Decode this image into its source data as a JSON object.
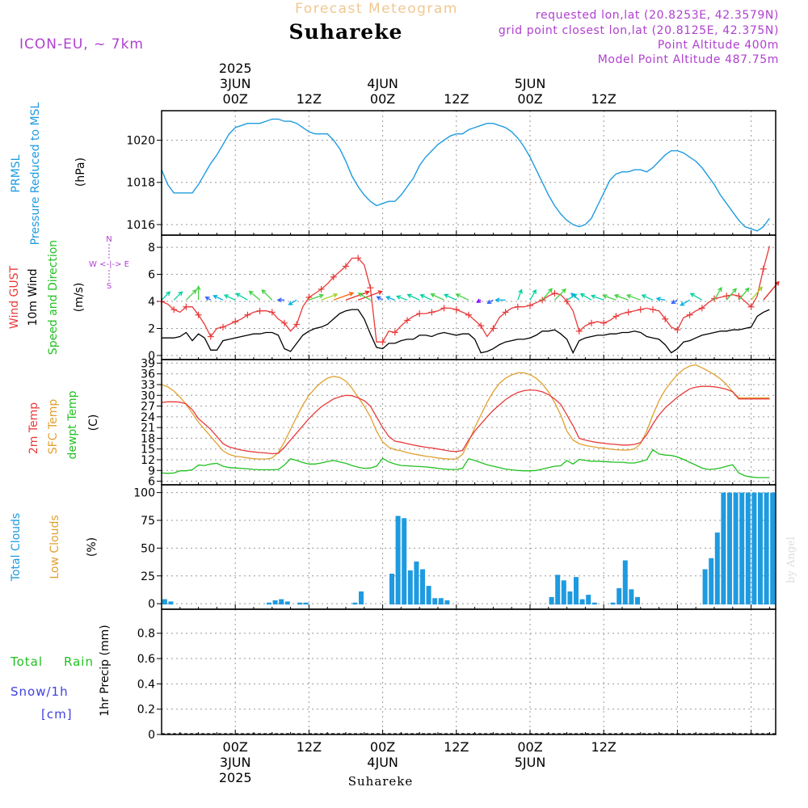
{
  "header": {
    "forecast_title": "Forecast Meteogram",
    "location": "Suhareke",
    "model": "ICON-EU, ~ 7km",
    "requested": "requested lon,lat (20.8253E, 42.3579N)",
    "gridpoint": "grid point closest lon,lat (20.8125E, 42.375N)",
    "point_alt": "Point Altitude 400m",
    "model_alt": "Model Point Altitude 487.75m",
    "footer_location": "Suhareke",
    "watermark": "by Angel"
  },
  "time_axis": {
    "top_labels": [
      {
        "t": 12,
        "lines": [
          "2025",
          "3JUN",
          "00Z"
        ]
      },
      {
        "t": 24,
        "lines": [
          "12Z"
        ]
      },
      {
        "t": 36,
        "lines": [
          "4JUN",
          "00Z"
        ]
      },
      {
        "t": 48,
        "lines": [
          "12Z"
        ]
      },
      {
        "t": 60,
        "lines": [
          "5JUN",
          "00Z"
        ]
      },
      {
        "t": 72,
        "lines": [
          "12Z"
        ]
      }
    ],
    "bottom_labels": [
      {
        "t": 12,
        "lines": [
          "00Z",
          "3JUN",
          "2025"
        ]
      },
      {
        "t": 24,
        "lines": [
          "12Z"
        ]
      },
      {
        "t": 36,
        "lines": [
          "00Z",
          "4JUN"
        ]
      },
      {
        "t": 48,
        "lines": [
          "12Z"
        ]
      },
      {
        "t": 60,
        "lines": [
          "00Z",
          "5JUN"
        ]
      },
      {
        "t": 72,
        "lines": [
          "12Z"
        ]
      }
    ]
  },
  "colors": {
    "pressure": "#1e9be0",
    "gust": "#e83a3a",
    "wind10m": "#000000",
    "temp2m": "#e83a3a",
    "sfctemp": "#e0a030",
    "dewpt": "#22c022",
    "clouds": "#1e9be0",
    "low_clouds": "#e0a030",
    "rain": "#22c022",
    "snow": "#4040e0",
    "purple": "#b040d0",
    "grid": "#999999"
  },
  "panel_labels": {
    "pressure": {
      "l1": "PRMSL",
      "l2": "Pressure Reduced to MSL",
      "unit": "(hPa)"
    },
    "wind": {
      "l1": "Wind GUST",
      "l2": "10m Wind",
      "l3": "Speed and Direction",
      "unit": "(m/s)",
      "compass_n": "N",
      "compass_we": "W <-|-> E",
      "compass_s": "S"
    },
    "temp": {
      "l1": "2m Temp",
      "l2": "SFC Temp",
      "l3": "dewpt Temp",
      "unit": "(C)"
    },
    "clouds": {
      "l1": "Total Clouds",
      "l2": "Low Clouds",
      "unit": "(%)"
    },
    "precip": {
      "l1": "Total",
      "l1b": "Rain",
      "l2": "Snow/1h",
      "l3": "[cm]",
      "ylabel": "1hr Precip (mm)"
    }
  },
  "chart_data": [
    {
      "type": "line",
      "panel": "pressure",
      "title": "PRMSL Pressure Reduced to MSL",
      "ylabel": "(hPa)",
      "ylim": [
        1015.5,
        1021.4
      ],
      "yticks": [
        1016,
        1018,
        1020
      ],
      "x_start_hours": 0,
      "x_step_hours": 1,
      "series": [
        {
          "name": "PRMSL",
          "values": [
            1018.6,
            1017.9,
            1017.5,
            1017.5,
            1017.5,
            1017.5,
            1017.9,
            1018.4,
            1018.9,
            1019.3,
            1019.8,
            1020.3,
            1020.6,
            1020.7,
            1020.8,
            1020.8,
            1020.8,
            1020.9,
            1021.0,
            1021.0,
            1020.9,
            1020.9,
            1020.8,
            1020.6,
            1020.4,
            1020.3,
            1020.3,
            1020.3,
            1020.0,
            1019.6,
            1019.0,
            1018.3,
            1017.8,
            1017.4,
            1017.1,
            1016.9,
            1017.0,
            1017.1,
            1017.1,
            1017.4,
            1017.8,
            1018.2,
            1018.8,
            1019.2,
            1019.5,
            1019.8,
            1020.0,
            1020.2,
            1020.3,
            1020.3,
            1020.5,
            1020.6,
            1020.7,
            1020.8,
            1020.8,
            1020.7,
            1020.6,
            1020.4,
            1020.1,
            1019.7,
            1019.2,
            1018.6,
            1018.0,
            1017.4,
            1016.9,
            1016.5,
            1016.2,
            1016.0,
            1015.9,
            1016.0,
            1016.3,
            1016.9,
            1017.5,
            1018.1,
            1018.4,
            1018.5,
            1018.5,
            1018.6,
            1018.6,
            1018.5,
            1018.7,
            1019.0,
            1019.3,
            1019.5,
            1019.5,
            1019.4,
            1019.2,
            1019.0,
            1018.7,
            1018.3,
            1017.9,
            1017.4,
            1017.0,
            1016.6,
            1016.2,
            1015.9,
            1015.8,
            1015.7,
            1015.9,
            1016.3
          ]
        }
      ]
    },
    {
      "type": "line",
      "panel": "wind",
      "title": "Wind GUST / 10m Wind Speed and Direction",
      "ylabel": "(m/s)",
      "ylim": [
        -0.3,
        8.9
      ],
      "yticks": [
        0,
        2,
        4,
        6,
        8
      ],
      "x_start_hours": 0,
      "x_step_hours": 1,
      "series": [
        {
          "name": "Wind GUST",
          "values": [
            4.0,
            3.8,
            3.4,
            3.2,
            3.6,
            3.6,
            3.0,
            2.3,
            1.4,
            2.0,
            2.1,
            2.3,
            2.5,
            2.7,
            3.0,
            3.2,
            3.3,
            3.3,
            3.2,
            2.7,
            2.4,
            1.8,
            2.3,
            3.6,
            4.3,
            4.6,
            4.9,
            5.3,
            5.8,
            6.2,
            6.6,
            7.2,
            7.2,
            6.7,
            5.0,
            1.0,
            1.0,
            1.8,
            1.7,
            2.2,
            2.6,
            2.9,
            3.1,
            3.1,
            3.2,
            3.3,
            3.5,
            3.5,
            3.4,
            3.2,
            3.0,
            2.6,
            2.2,
            1.4,
            2.0,
            2.8,
            3.2,
            3.5,
            3.6,
            3.6,
            3.7,
            3.9,
            4.1,
            4.4,
            4.6,
            4.5,
            4.0,
            3.3,
            1.8,
            2.2,
            2.4,
            2.5,
            2.4,
            2.6,
            2.9,
            3.1,
            3.2,
            3.3,
            3.4,
            3.5,
            3.4,
            3.3,
            2.7,
            2.1,
            1.9,
            2.8,
            3.0,
            3.3,
            3.5,
            3.9,
            4.2,
            4.3,
            4.4,
            4.5,
            4.4,
            4.0,
            3.6,
            4.4,
            6.4,
            8.1
          ]
        },
        {
          "name": "10m Wind",
          "values": [
            1.3,
            1.3,
            1.3,
            1.4,
            1.7,
            1.1,
            1.6,
            1.3,
            0.4,
            0.4,
            1.1,
            1.2,
            1.3,
            1.4,
            1.5,
            1.6,
            1.6,
            1.7,
            1.7,
            1.5,
            0.5,
            0.3,
            0.9,
            1.5,
            1.8,
            2.0,
            2.1,
            2.3,
            2.7,
            3.1,
            3.3,
            3.4,
            3.4,
            2.7,
            1.6,
            0.6,
            0.5,
            0.9,
            0.9,
            1.1,
            1.2,
            1.2,
            1.5,
            1.5,
            1.4,
            1.6,
            1.7,
            1.6,
            1.5,
            1.6,
            1.6,
            1.2,
            0.2,
            0.3,
            0.5,
            0.8,
            1.0,
            1.1,
            1.2,
            1.2,
            1.3,
            1.5,
            1.8,
            1.8,
            1.9,
            1.6,
            1.2,
            0.2,
            1.1,
            1.3,
            1.4,
            1.5,
            1.5,
            1.6,
            1.6,
            1.7,
            1.7,
            1.8,
            1.7,
            1.4,
            1.3,
            1.2,
            0.8,
            0.2,
            0.5,
            1.0,
            1.1,
            1.3,
            1.5,
            1.6,
            1.7,
            1.8,
            1.8,
            1.9,
            1.9,
            2.0,
            2.1,
            2.9,
            3.2,
            3.4
          ]
        },
        {
          "name": "Wind direction (from, deg)",
          "values": [
            225,
            225,
            225,
            225,
            225,
            210,
            180,
            135,
            120,
            120,
            115,
            115,
            115,
            120,
            120,
            125,
            130,
            135,
            135,
            120,
            90,
            70,
            60,
            45,
            250,
            250,
            250,
            250,
            250,
            250,
            250,
            250,
            250,
            250,
            120,
            120,
            120,
            120,
            110,
            110,
            110,
            115,
            115,
            115,
            115,
            115,
            115,
            115,
            115,
            115,
            115,
            90,
            60,
            60,
            60,
            60,
            90,
            120,
            200,
            200,
            210,
            215,
            220,
            225,
            225,
            240,
            240,
            230,
            130,
            120,
            120,
            110,
            110,
            110,
            110,
            110,
            110,
            110,
            110,
            110,
            115,
            120,
            100,
            80,
            60,
            60,
            60,
            90,
            120,
            210,
            210,
            210,
            220,
            220,
            220,
            220,
            220,
            220,
            220,
            220
          ]
        }
      ]
    },
    {
      "type": "line",
      "panel": "temp",
      "title": "2m Temp / SFC Temp / dewpt Temp",
      "ylabel": "(C)",
      "ylim": [
        5,
        40
      ],
      "yticks": [
        6,
        9,
        12,
        15,
        18,
        21,
        24,
        27,
        30,
        33,
        36,
        39
      ],
      "x_start_hours": 0,
      "x_step_hours": 1,
      "series": [
        {
          "name": "2m Temp",
          "values": [
            28.0,
            28.2,
            28.2,
            28.1,
            27.6,
            26.0,
            23.5,
            22.0,
            20.5,
            18.5,
            16.5,
            15.6,
            15.1,
            14.7,
            14.4,
            14.2,
            14.0,
            13.9,
            13.7,
            13.8,
            15.5,
            17.5,
            19.5,
            21.5,
            23.5,
            25.2,
            26.8,
            27.9,
            29.0,
            29.6,
            30.0,
            29.9,
            29.3,
            28.5,
            27.0,
            24.0,
            21.0,
            18.5,
            17.2,
            16.9,
            16.5,
            16.1,
            15.8,
            15.5,
            15.3,
            15.0,
            14.7,
            14.4,
            14.3,
            14.6,
            17.5,
            20.0,
            22.0,
            24.0,
            25.8,
            27.3,
            28.8,
            29.9,
            30.8,
            31.3,
            31.5,
            31.4,
            31.0,
            30.2,
            29.0,
            27.5,
            24.5,
            21.5,
            18.0,
            17.5,
            17.1,
            16.8,
            16.6,
            16.4,
            16.3,
            16.1,
            16.1,
            16.3,
            16.8,
            19.0,
            22.0,
            24.5,
            26.5,
            28.0,
            29.5,
            30.7,
            31.8,
            32.3,
            32.5,
            32.5,
            32.4,
            32.1,
            31.7,
            31.0,
            29.0,
            29.0,
            29.0,
            29.0,
            29.0,
            29.0
          ]
        },
        {
          "name": "SFC Temp",
          "values": [
            33.0,
            32.4,
            31.2,
            29.5,
            27.5,
            25.0,
            22.5,
            20.5,
            18.5,
            16.5,
            14.5,
            13.5,
            13.0,
            12.8,
            12.5,
            12.3,
            12.2,
            12.2,
            12.5,
            14.0,
            17.0,
            20.5,
            24.0,
            27.3,
            30.0,
            32.0,
            33.6,
            34.8,
            35.3,
            35.0,
            34.0,
            32.0,
            29.5,
            27.0,
            24.0,
            20.0,
            17.0,
            15.5,
            14.8,
            14.5,
            14.0,
            13.6,
            13.3,
            13.0,
            12.8,
            12.5,
            12.3,
            12.2,
            12.2,
            13.5,
            17.0,
            21.0,
            24.5,
            28.0,
            31.0,
            33.3,
            34.8,
            35.7,
            36.3,
            36.3,
            35.8,
            34.8,
            33.2,
            31.0,
            28.0,
            24.5,
            20.0,
            17.5,
            16.5,
            16.0,
            15.7,
            15.4,
            15.2,
            15.0,
            14.8,
            14.7,
            14.7,
            15.0,
            16.5,
            20.0,
            24.5,
            28.5,
            31.5,
            33.8,
            35.8,
            37.3,
            38.2,
            38.5,
            37.7,
            36.8,
            35.8,
            34.6,
            33.0,
            31.0,
            29.3,
            29.3,
            29.3,
            29.3,
            29.3,
            29.3
          ]
        },
        {
          "name": "dewpt Temp",
          "values": [
            8.3,
            8.2,
            8.3,
            8.9,
            8.9,
            9.2,
            10.5,
            10.4,
            10.8,
            11.0,
            10.2,
            9.8,
            9.7,
            9.6,
            9.5,
            9.3,
            9.2,
            9.2,
            9.2,
            9.3,
            10.5,
            12.3,
            11.8,
            11.2,
            10.8,
            10.8,
            11.1,
            11.5,
            11.8,
            11.4,
            11.0,
            10.4,
            9.9,
            9.6,
            9.7,
            10.2,
            12.4,
            11.4,
            10.8,
            10.4,
            10.3,
            10.2,
            10.1,
            10.0,
            9.8,
            9.6,
            9.4,
            9.3,
            9.3,
            9.6,
            12.3,
            11.8,
            11.2,
            10.6,
            10.2,
            9.8,
            9.4,
            9.2,
            9.0,
            8.9,
            8.9,
            9.0,
            9.4,
            9.8,
            10.2,
            10.3,
            11.8,
            10.8,
            12.1,
            11.8,
            11.6,
            11.6,
            11.5,
            11.4,
            11.3,
            11.3,
            11.1,
            11.1,
            11.5,
            12.0,
            14.8,
            13.6,
            13.3,
            13.2,
            12.8,
            12.1,
            11.3,
            10.5,
            9.7,
            9.3,
            9.4,
            9.7,
            10.2,
            10.6,
            8.3,
            7.5,
            7.2,
            7.0,
            7.0,
            7.0
          ]
        }
      ]
    },
    {
      "type": "bar",
      "panel": "clouds",
      "title": "Total Clouds / Low Clouds",
      "ylabel": "(%)",
      "ylim": [
        -5,
        107
      ],
      "yticks": [
        0,
        25,
        50,
        75,
        100
      ],
      "x_start_hours": 0,
      "x_step_hours": 1,
      "series": [
        {
          "name": "Total Clouds",
          "values": [
            4,
            2,
            0,
            0,
            0,
            0,
            0,
            0,
            0,
            0,
            0,
            0,
            0,
            0,
            0,
            0,
            0,
            1,
            3,
            4,
            2,
            0,
            1,
            1,
            0,
            0,
            0,
            0,
            0,
            0,
            0,
            1,
            11,
            0,
            0,
            0,
            0,
            27,
            79,
            77,
            30,
            38,
            31,
            16,
            5,
            5,
            3,
            0,
            0,
            0,
            0,
            0,
            0,
            0,
            0,
            0,
            0,
            0,
            0,
            0,
            0,
            0,
            0,
            6,
            26,
            21,
            11,
            24,
            4,
            8,
            1,
            0,
            0,
            1,
            14,
            39,
            13,
            6,
            0,
            0,
            0,
            0,
            0,
            0,
            0,
            0,
            0,
            0,
            31,
            41,
            64,
            100,
            100,
            100,
            100,
            100,
            100,
            100,
            100,
            100
          ]
        }
      ]
    },
    {
      "type": "bar",
      "panel": "precip",
      "title": "Total Rain Snow/1h [cm]",
      "ylabel": "1hr Precip (mm)",
      "ylim": [
        0,
        0.99
      ],
      "yticks": [
        0,
        0.2,
        0.4,
        0.6,
        0.8
      ],
      "x_start_hours": 0,
      "x_step_hours": 1,
      "series": [
        {
          "name": "Total Rain",
          "values": []
        },
        {
          "name": "Snow/1h",
          "values": []
        }
      ]
    }
  ]
}
